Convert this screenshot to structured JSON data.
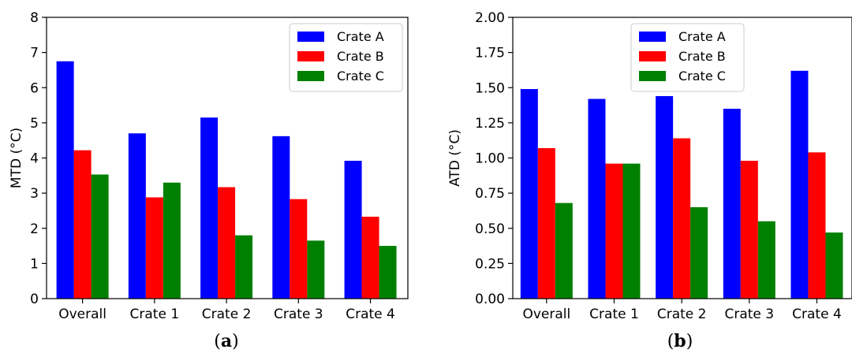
{
  "chart_data": [
    {
      "type": "bar",
      "caption_open": "(",
      "caption_letter": "a",
      "caption_close": ")",
      "title": "",
      "xlabel": "",
      "ylabel": "MTD (°C)",
      "ylim": [
        0,
        8
      ],
      "yticks": [
        "0",
        "1",
        "2",
        "3",
        "4",
        "5",
        "6",
        "7",
        "8"
      ],
      "categories": [
        "Overall",
        "Crate 1",
        "Crate 2",
        "Crate 3",
        "Crate 4"
      ],
      "series": [
        {
          "name": "Crate A",
          "color": "#0000ff",
          "values": [
            6.75,
            4.7,
            5.15,
            4.62,
            3.92
          ]
        },
        {
          "name": "Crate B",
          "color": "#ff0000",
          "values": [
            4.22,
            2.88,
            3.17,
            2.83,
            2.33
          ]
        },
        {
          "name": "Crate C",
          "color": "#008000",
          "values": [
            3.53,
            3.3,
            1.8,
            1.65,
            1.5
          ]
        }
      ],
      "legend": "top-right",
      "grid": false
    },
    {
      "type": "bar",
      "caption_open": "(",
      "caption_letter": "b",
      "caption_close": ")",
      "title": "",
      "xlabel": "",
      "ylabel": "ATD (°C)",
      "ylim": [
        0,
        2
      ],
      "yticks": [
        "0.00",
        "0.25",
        "0.50",
        "0.75",
        "1.00",
        "1.25",
        "1.50",
        "1.75",
        "2.00"
      ],
      "categories": [
        "Overall",
        "Crate 1",
        "Crate 2",
        "Crate 3",
        "Crate 4"
      ],
      "series": [
        {
          "name": "Crate A",
          "color": "#0000ff",
          "values": [
            1.49,
            1.42,
            1.44,
            1.35,
            1.62
          ]
        },
        {
          "name": "Crate B",
          "color": "#ff0000",
          "values": [
            1.07,
            0.96,
            1.14,
            0.98,
            1.04
          ]
        },
        {
          "name": "Crate C",
          "color": "#008000",
          "values": [
            0.68,
            0.96,
            0.65,
            0.55,
            0.47
          ]
        }
      ],
      "legend": "top-center",
      "grid": false
    }
  ]
}
